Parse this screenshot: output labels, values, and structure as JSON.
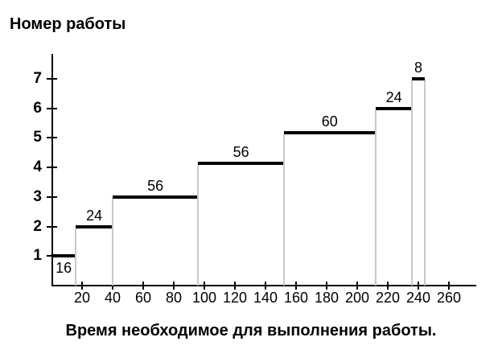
{
  "page": {
    "background": "#ffffff",
    "text_color": "#000000"
  },
  "chart_data": {
    "type": "bar",
    "subtype": "horizontal-step-schedule",
    "title": "Номер работы",
    "xlabel": "Время необходимое для выполнения работы.",
    "ylabel": "",
    "x_ticks": [
      20,
      40,
      60,
      80,
      100,
      120,
      140,
      160,
      180,
      200,
      220,
      240,
      260
    ],
    "y_ticks": [
      1,
      2,
      3,
      4,
      5,
      6,
      7
    ],
    "xlim": [
      0,
      278
    ],
    "ylim": [
      0,
      7.85
    ],
    "grid": false,
    "legend": "none",
    "colors": {
      "bar": "#000000",
      "axis": "#000000",
      "drop_line": "#c8c8c8",
      "text": "#000000"
    },
    "tasks": [
      {
        "work_number": 1,
        "start": 0,
        "end": 16,
        "duration": 16,
        "duration_label": "16",
        "label_position": "below"
      },
      {
        "work_number": 2,
        "start": 16,
        "end": 40,
        "duration": 24,
        "duration_label": "24",
        "label_position": "above"
      },
      {
        "work_number": 3,
        "start": 40,
        "end": 96,
        "duration": 56,
        "duration_label": "56",
        "label_position": "above"
      },
      {
        "work_number": 4,
        "start": 96,
        "end": 152,
        "duration": 56,
        "duration_label": "56",
        "label_position": "above"
      },
      {
        "work_number": 5,
        "start": 152,
        "end": 212,
        "duration": 60,
        "duration_label": "60",
        "label_position": "above"
      },
      {
        "work_number": 6,
        "start": 212,
        "end": 236,
        "duration": 24,
        "duration_label": "24",
        "label_position": "above"
      },
      {
        "work_number": 7,
        "start": 236,
        "end": 244,
        "duration": 8,
        "duration_label": "8",
        "label_position": "above"
      }
    ]
  }
}
